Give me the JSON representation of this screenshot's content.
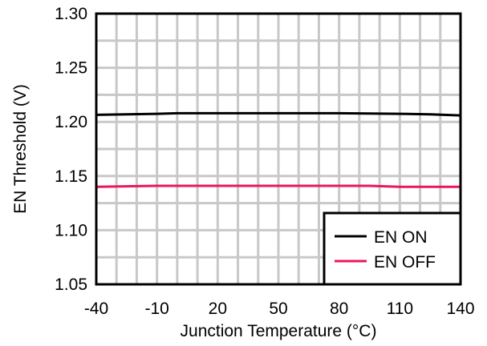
{
  "chart_data": {
    "type": "line",
    "xlabel": "Junction Temperature (°C)",
    "ylabel": "EN Threshold (V)",
    "xlim": [
      -40,
      140
    ],
    "ylim": [
      1.05,
      1.3
    ],
    "x_ticks": [
      "-40",
      "-10",
      "20",
      "50",
      "80",
      "110",
      "140"
    ],
    "x_tick_values": [
      -40,
      -10,
      20,
      50,
      80,
      110,
      140
    ],
    "y_ticks": [
      "1.05",
      "1.10",
      "1.15",
      "1.20",
      "1.25",
      "1.30"
    ],
    "y_tick_values": [
      1.05,
      1.1,
      1.15,
      1.2,
      1.25,
      1.3
    ],
    "grid": true,
    "legend_position": "bottom-right",
    "series": [
      {
        "name": "EN ON",
        "color": "#000000",
        "x": [
          -40,
          -25,
          -10,
          0,
          20,
          50,
          80,
          110,
          125,
          140
        ],
        "y": [
          1.2065,
          1.207,
          1.2075,
          1.208,
          1.208,
          1.208,
          1.208,
          1.2075,
          1.207,
          1.206
        ]
      },
      {
        "name": "EN OFF",
        "color": "#e8185a",
        "x": [
          -40,
          -25,
          -10,
          20,
          50,
          80,
          95,
          110,
          125,
          140
        ],
        "y": [
          1.14,
          1.1405,
          1.141,
          1.141,
          1.141,
          1.141,
          1.141,
          1.14,
          1.14,
          1.14
        ]
      }
    ]
  }
}
